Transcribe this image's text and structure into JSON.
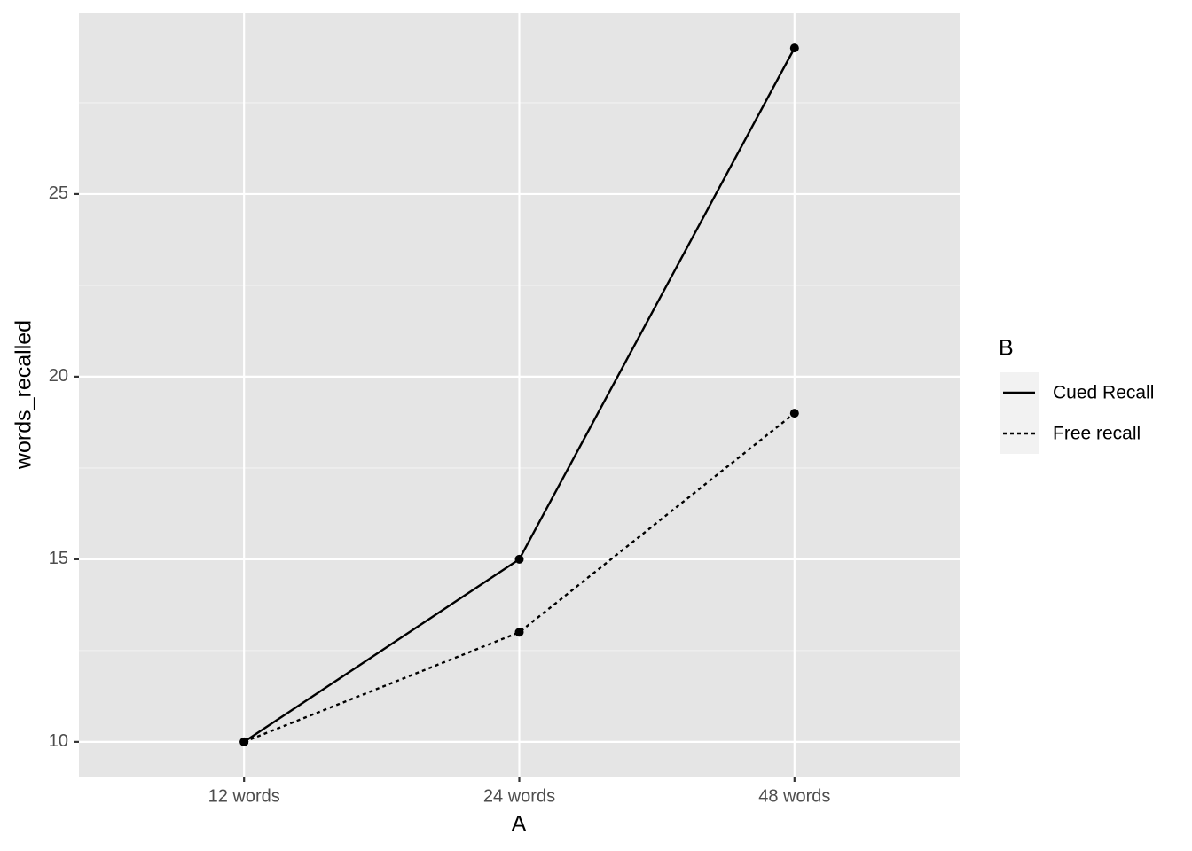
{
  "chart_data": {
    "type": "line",
    "x_label": "A",
    "y_label": "words_recalled",
    "categories": [
      "12 words",
      "24 words",
      "48 words"
    ],
    "series": [
      {
        "name": "Cued Recall",
        "color": "#000000",
        "linetype": "solid",
        "values": [
          10,
          15,
          29
        ]
      },
      {
        "name": "Free recall",
        "color": "#000000",
        "linetype": "dotted",
        "values": [
          10,
          13,
          19
        ]
      }
    ],
    "legend_title": "B",
    "legend_position": "right",
    "ylim": [
      9.05,
      29.95
    ],
    "yticks": [
      10,
      15,
      20,
      25
    ],
    "grid": true
  }
}
